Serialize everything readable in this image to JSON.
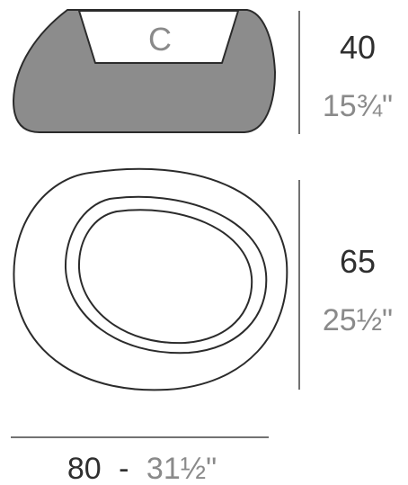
{
  "side_view": {
    "cutout_label": "C",
    "height_cm": "40",
    "height_in": "15¾\""
  },
  "top_view": {
    "depth_cm": "65",
    "depth_in": "25½\""
  },
  "width": {
    "cm": "80",
    "separator": "-",
    "in": "31½\""
  },
  "colors": {
    "outline": "#2b2b2b",
    "body_fill": "#8c8c8c",
    "cutout_fill": "#ffffff",
    "dimension_line": "#444444",
    "metric_text": "#2f2f2f",
    "imperial_text": "#8a8a8a"
  }
}
